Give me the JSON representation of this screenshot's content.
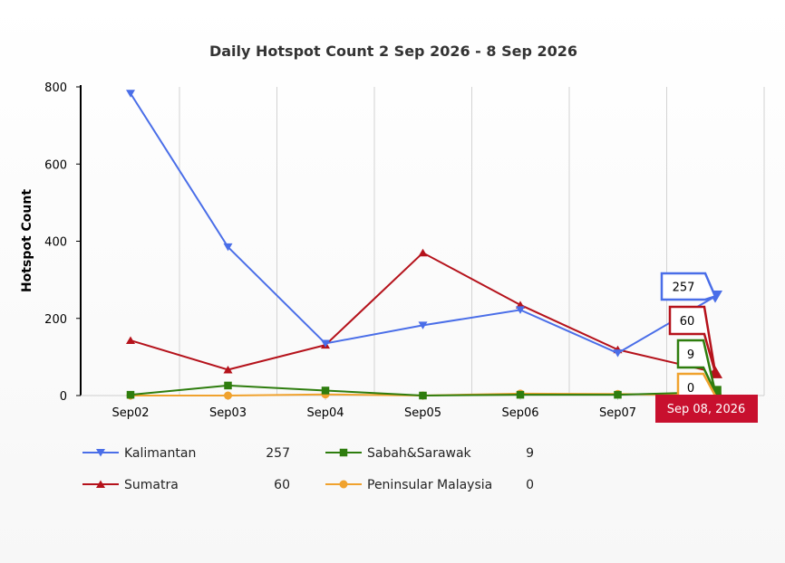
{
  "chart_data": {
    "type": "line",
    "title": "Daily Hotspot Count 2 Sep 2026 - 8 Sep 2026",
    "ylabel": "Hotspot Count",
    "xlabel": "",
    "ylim": [
      0,
      800
    ],
    "yticks": [
      0,
      200,
      400,
      600,
      800
    ],
    "categories": [
      "Sep02",
      "Sep03",
      "Sep04",
      "Sep05",
      "Sep06",
      "Sep07",
      "Sep08"
    ],
    "grid": "vertical",
    "legend": "bottom",
    "crosshair_label": "Sep 08, 2026",
    "series": [
      {
        "name": "Kalimantan",
        "color": "#4a6ee8",
        "marker": "triangle-down",
        "values": [
          783,
          385,
          135,
          182,
          222,
          110,
          257
        ]
      },
      {
        "name": "Sumatra",
        "color": "#b5121b",
        "marker": "triangle-up",
        "values": [
          143,
          67,
          131,
          370,
          235,
          119,
          60
        ]
      },
      {
        "name": "Sabah&Sarawak",
        "color": "#2e7d0e",
        "marker": "square",
        "values": [
          2,
          26,
          13,
          0,
          2,
          2,
          9
        ]
      },
      {
        "name": "Peninsular Malaysia",
        "color": "#f0a22e",
        "marker": "circle",
        "values": [
          0,
          0,
          3,
          0,
          5,
          4,
          0
        ]
      }
    ]
  }
}
